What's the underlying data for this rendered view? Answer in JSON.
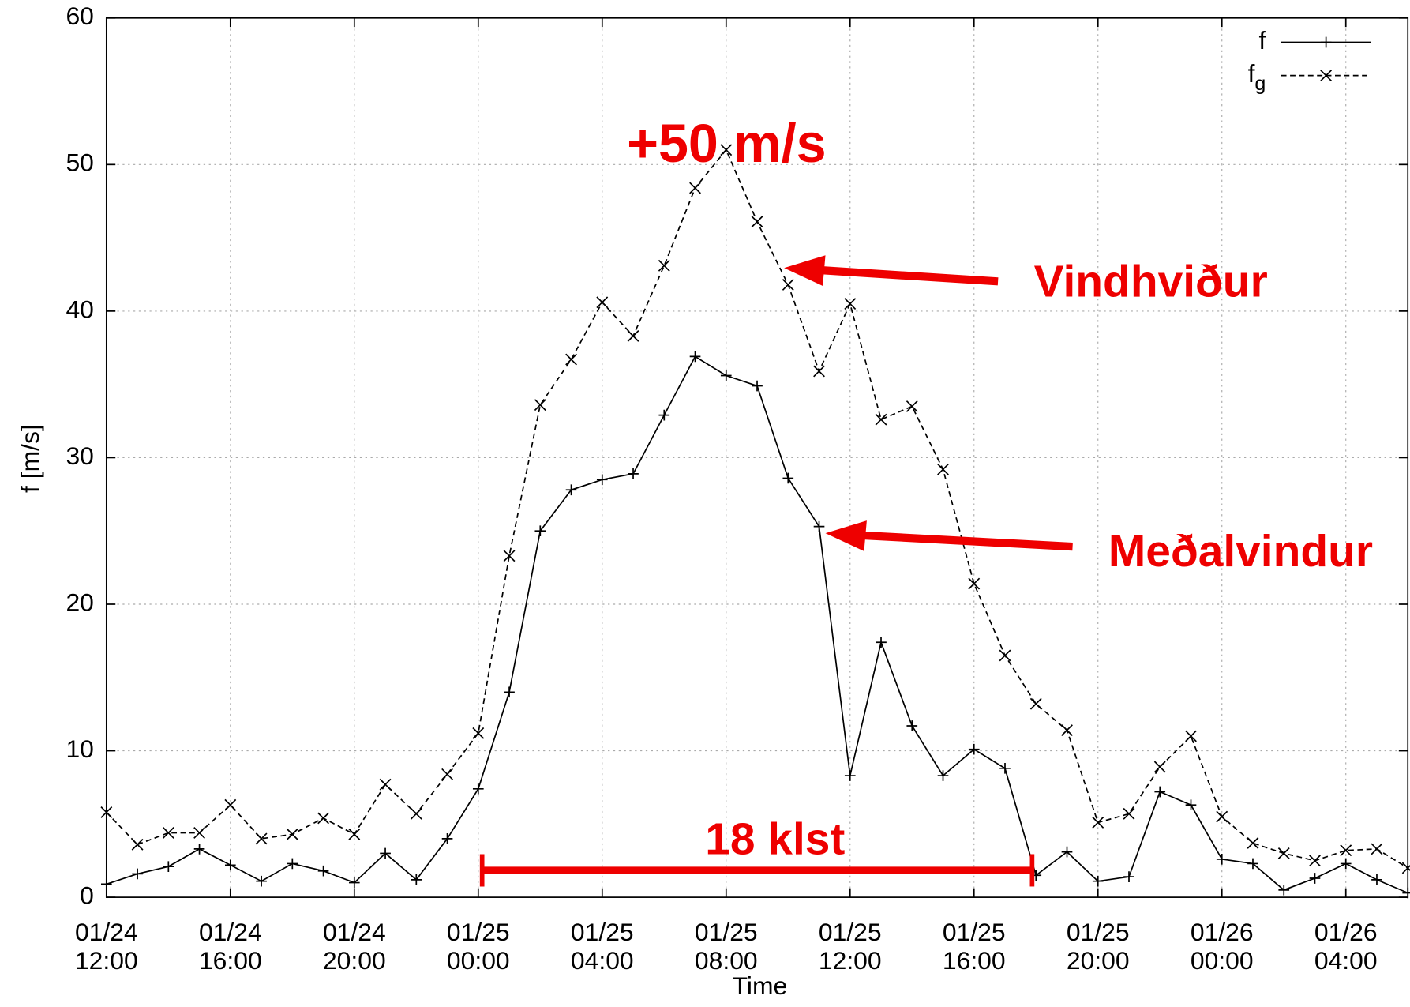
{
  "chart_data": {
    "type": "line",
    "ylabel": "f [m/s]",
    "xlabel": "Time",
    "x": [
      "01/24 12:00",
      "01/24 13:00",
      "01/24 14:00",
      "01/24 15:00",
      "01/24 16:00",
      "01/24 17:00",
      "01/24 18:00",
      "01/24 19:00",
      "01/24 20:00",
      "01/24 21:00",
      "01/24 22:00",
      "01/24 23:00",
      "01/25 00:00",
      "01/25 01:00",
      "01/25 02:00",
      "01/25 03:00",
      "01/25 04:00",
      "01/25 05:00",
      "01/25 06:00",
      "01/25 07:00",
      "01/25 08:00",
      "01/25 09:00",
      "01/25 10:00",
      "01/25 11:00",
      "01/25 12:00",
      "01/25 13:00",
      "01/25 14:00",
      "01/25 15:00",
      "01/25 16:00",
      "01/25 17:00",
      "01/25 18:00",
      "01/25 19:00",
      "01/25 20:00",
      "01/25 21:00",
      "01/25 22:00",
      "01/25 23:00",
      "01/26 00:00",
      "01/26 01:00",
      "01/26 02:00",
      "01/26 03:00",
      "01/26 04:00",
      "01/26 05:00",
      "01/26 06:00"
    ],
    "series": [
      {
        "name": "f",
        "color": "#000000",
        "dashed": false,
        "marker": "plus",
        "values": [
          0.9,
          1.6,
          2.1,
          3.3,
          2.2,
          1.1,
          2.3,
          1.8,
          1.0,
          3.0,
          1.2,
          4.0,
          7.4,
          14.0,
          25.0,
          27.8,
          28.5,
          28.9,
          32.9,
          36.9,
          35.6,
          34.9,
          28.6,
          25.3,
          8.3,
          17.4,
          11.7,
          8.3,
          10.1,
          8.8,
          1.5,
          3.1,
          1.1,
          1.4,
          7.2,
          6.3,
          2.6,
          2.3,
          0.5,
          1.3,
          2.3,
          1.2,
          0.3
        ]
      },
      {
        "name": "fg",
        "color": "#000000",
        "dashed": true,
        "marker": "cross",
        "values": [
          5.8,
          3.6,
          4.4,
          4.4,
          6.3,
          4.0,
          4.3,
          5.4,
          4.3,
          7.7,
          5.7,
          8.4,
          11.2,
          23.3,
          33.6,
          36.7,
          40.6,
          38.3,
          43.1,
          48.4,
          51.0,
          46.1,
          41.8,
          35.9,
          40.5,
          32.6,
          33.5,
          29.2,
          21.4,
          16.5,
          13.2,
          11.4,
          5.1,
          5.7,
          8.9,
          11.0,
          5.5,
          3.7,
          3.0,
          2.5,
          3.2,
          3.3,
          2.0
        ]
      }
    ],
    "xlim": [
      "01/24 12:00",
      "01/26 06:00"
    ],
    "xticks": [
      "01/24 12:00",
      "01/24 16:00",
      "01/24 20:00",
      "01/25 00:00",
      "01/25 04:00",
      "01/25 08:00",
      "01/25 12:00",
      "01/25 16:00",
      "01/25 20:00",
      "01/26 00:00",
      "01/26 04:00"
    ],
    "ylim": [
      0,
      60
    ],
    "yticks": [
      0,
      10,
      20,
      30,
      40,
      50,
      60
    ],
    "grid": true,
    "legend": "upper right",
    "annotations": [
      "+50 m/s",
      "Vindhviður",
      "Meðalvindur",
      "18 klst"
    ]
  }
}
